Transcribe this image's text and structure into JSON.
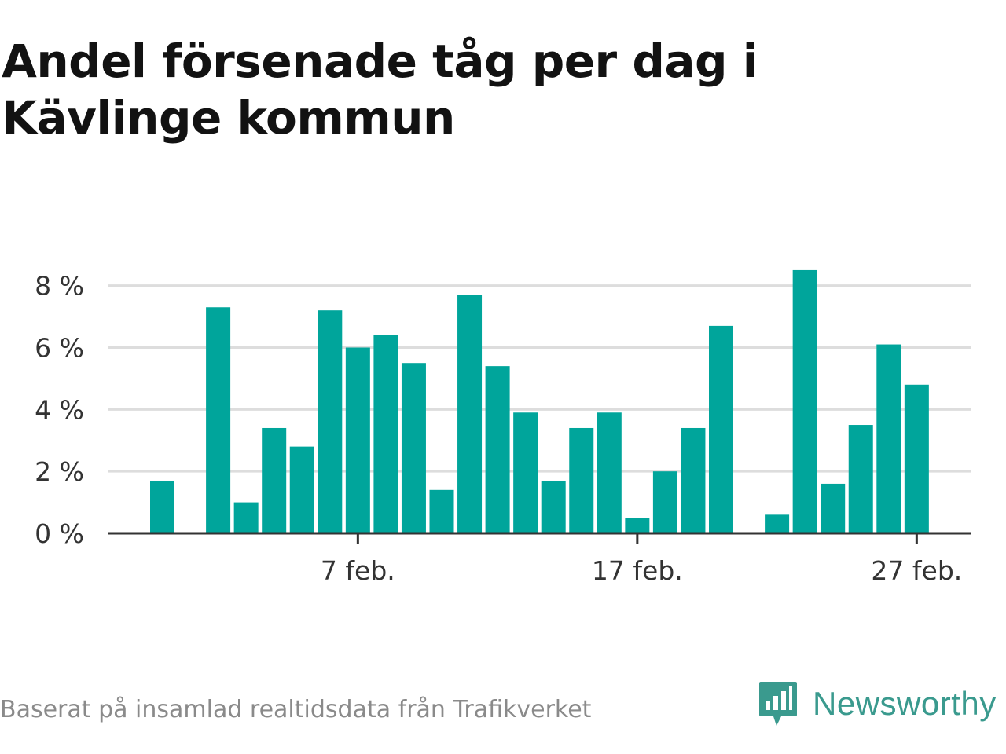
{
  "title": "Andel försenade tåg per dag i Kävlinge kommun",
  "footer": {
    "source": "Baserat på insamlad realtidsdata från Trafikverket"
  },
  "brand": {
    "name": "Newsworthy",
    "icon": "chart-bubble-icon",
    "color": "#3a9a8e"
  },
  "colors": {
    "bar": "#00a59b",
    "grid": "#dddddd",
    "axis": "#333333"
  },
  "chart_data": {
    "type": "bar",
    "title": "Andel försenade tåg per dag i Kävlinge kommun",
    "xlabel": "",
    "ylabel": "",
    "ylim": [
      0,
      8.6
    ],
    "y_ticks": [
      0,
      2,
      4,
      6,
      8
    ],
    "y_tick_labels": [
      "0 %",
      "2 %",
      "4 %",
      "6 %",
      "8 %"
    ],
    "x_ticks": [
      "7 feb.",
      "17 feb.",
      "27 feb."
    ],
    "grid": true,
    "categories": [
      "31 jan.",
      "1 feb.",
      "2 feb.",
      "3 feb.",
      "4 feb.",
      "5 feb.",
      "6 feb.",
      "7 feb.",
      "8 feb.",
      "9 feb.",
      "10 feb.",
      "11 feb.",
      "12 feb.",
      "13 feb.",
      "14 feb.",
      "15 feb.",
      "16 feb.",
      "17 feb.",
      "18 feb.",
      "19 feb.",
      "20 feb.",
      "21 feb.",
      "22 feb.",
      "23 feb.",
      "24 feb.",
      "25 feb.",
      "26 feb.",
      "27 feb.",
      "28 feb."
    ],
    "series": [
      {
        "values": [
          1.7,
          null,
          7.3,
          1.0,
          3.4,
          2.8,
          7.2,
          6.0,
          6.4,
          5.5,
          1.4,
          7.7,
          5.4,
          3.9,
          1.7,
          3.4,
          3.9,
          0.5,
          2.0,
          3.4,
          6.7,
          null,
          0.6,
          8.5,
          1.6,
          3.5,
          6.1,
          4.8,
          null
        ]
      }
    ]
  }
}
